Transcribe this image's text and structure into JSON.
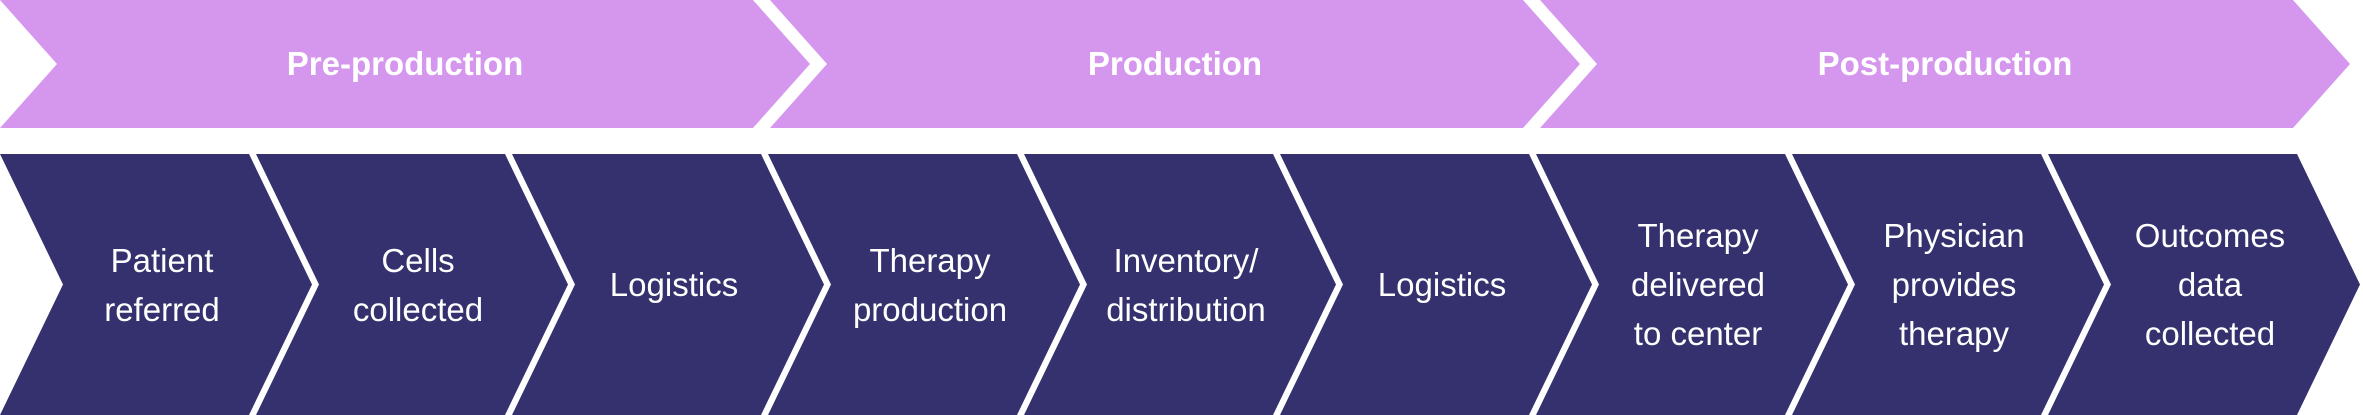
{
  "colors": {
    "phase": "#d596ee",
    "step": "#35316e",
    "text": "#ffffff"
  },
  "phases": [
    {
      "label": "Pre-production"
    },
    {
      "label": "Production"
    },
    {
      "label": "Post-production"
    }
  ],
  "steps": [
    {
      "label": "Patient\nreferred"
    },
    {
      "label": "Cells\ncollected"
    },
    {
      "label": "Logistics"
    },
    {
      "label": "Therapy\nproduction"
    },
    {
      "label": "Inventory/\ndistribution"
    },
    {
      "label": "Logistics"
    },
    {
      "label": "Therapy\ndelivered\nto center"
    },
    {
      "label": "Physician\nprovides\ntherapy"
    },
    {
      "label": "Outcomes\ndata\ncollected"
    }
  ]
}
